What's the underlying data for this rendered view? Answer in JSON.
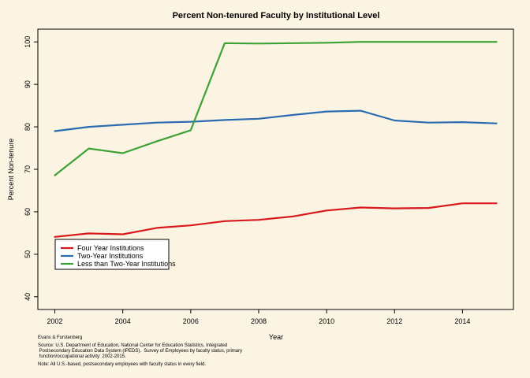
{
  "chart_data": {
    "type": "line",
    "title": "Percent Non-tenured Faculty by Institutional Level",
    "xlabel": "Year",
    "ylabel": "Percent Non-tenure",
    "xlim": [
      2001.5,
      2015.5
    ],
    "ylim": [
      37,
      103
    ],
    "x_ticks": [
      2002,
      2004,
      2006,
      2008,
      2010,
      2012,
      2014
    ],
    "y_ticks": [
      40,
      50,
      60,
      70,
      80,
      90,
      100
    ],
    "x": [
      2002,
      2003,
      2004,
      2005,
      2006,
      2007,
      2008,
      2009,
      2010,
      2011,
      2012,
      2013,
      2014,
      2015
    ],
    "legend_position": "bottom-left",
    "grid": false,
    "series": [
      {
        "name": "Four Year Institutions",
        "color": "#D7191C",
        "values": [
          54.1,
          54.9,
          54.7,
          56.2,
          56.8,
          57.8,
          58.1,
          58.9,
          60.3,
          61.0,
          60.8,
          60.9,
          62.0,
          62.0
        ]
      },
      {
        "name": "Two-Year Institutions",
        "color": "#2B6BB0",
        "values": [
          79.0,
          80.0,
          80.5,
          81.0,
          81.2,
          81.6,
          81.9,
          82.8,
          83.6,
          83.8,
          81.5,
          81.0,
          81.1,
          80.8
        ]
      },
      {
        "name": "Less than Two-Year Institutions",
        "color": "#3DA136",
        "values": [
          68.6,
          74.9,
          73.8,
          76.6,
          79.2,
          99.7,
          99.6,
          99.7,
          99.8,
          100.0,
          100.0,
          100.0,
          100.0,
          100.0
        ]
      }
    ]
  },
  "footer": {
    "credit": "Evans & Furstenberg",
    "source_lines": [
      "Source: U.S. Department of Education, National Center for Education Statistics, Integrated",
      " Postsecondary Education Data System (IPEDS).  Survey of Employees by faculty status, primary",
      " function/occupational activity: 2002-2015."
    ],
    "note": "Note: All U.S.-based, postsecondary employees with faculty status in every field."
  }
}
